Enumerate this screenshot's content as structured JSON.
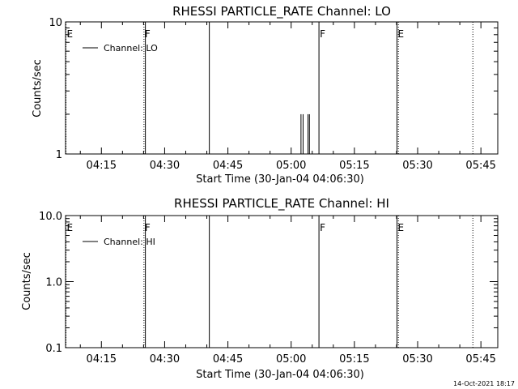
{
  "footer_date": "14-Oct-2021 18:17",
  "chart_data": [
    {
      "type": "line",
      "title": "RHESSI PARTICLE_RATE Channel: LO",
      "xlabel": "Start Time (30-Jan-04 04:06:30)",
      "ylabel": "Counts/sec",
      "y_scale": "log",
      "ylim": [
        1,
        10
      ],
      "y_ticks": [
        {
          "value": 1,
          "label": "1"
        },
        {
          "value": 10,
          "label": "10"
        }
      ],
      "xlim": [
        "04:06:30",
        "05:49:00"
      ],
      "x_ticks": [
        "04:15",
        "04:30",
        "04:45",
        "05:00",
        "05:15",
        "05:30",
        "05:45"
      ],
      "legend": {
        "position": "top-left",
        "label": "Channel: LO"
      },
      "flags": [
        {
          "time": "04:06:30",
          "label": "E",
          "style": "dotted"
        },
        {
          "time": "04:25:00",
          "label": "F",
          "style": "dotted"
        },
        {
          "time": "04:25:20",
          "label": "",
          "style": "solid"
        },
        {
          "time": "04:40:30",
          "label": "",
          "style": "solid"
        },
        {
          "time": "05:06:30",
          "label": "F",
          "style": "solid"
        },
        {
          "time": "05:25:00",
          "label": "E",
          "style": "solid"
        },
        {
          "time": "05:25:20",
          "label": "",
          "style": "dotted"
        },
        {
          "time": "05:43:00",
          "label": "",
          "style": "dotted"
        }
      ],
      "series": [
        {
          "points": [
            {
              "x": "05:02:20",
              "y": 2
            },
            {
              "x": "05:02:50",
              "y": 2
            },
            {
              "x": "05:04:00",
              "y": 2
            },
            {
              "x": "05:04:20",
              "y": 2
            }
          ]
        }
      ]
    },
    {
      "type": "line",
      "title": "RHESSI PARTICLE_RATE Channel: HI",
      "xlabel": "Start Time (30-Jan-04 04:06:30)",
      "ylabel": "Counts/sec",
      "y_scale": "log",
      "ylim": [
        0.1,
        10
      ],
      "y_ticks": [
        {
          "value": 0.1,
          "label": "0.1"
        },
        {
          "value": 1,
          "label": "1.0"
        },
        {
          "value": 10,
          "label": "10.0"
        }
      ],
      "xlim": [
        "04:06:30",
        "05:49:00"
      ],
      "x_ticks": [
        "04:15",
        "04:30",
        "04:45",
        "05:00",
        "05:15",
        "05:30",
        "05:45"
      ],
      "legend": {
        "position": "top-left",
        "label": "Channel: HI"
      },
      "flags": [
        {
          "time": "04:06:30",
          "label": "E",
          "style": "dotted"
        },
        {
          "time": "04:25:00",
          "label": "F",
          "style": "dotted"
        },
        {
          "time": "04:25:20",
          "label": "",
          "style": "solid"
        },
        {
          "time": "04:40:30",
          "label": "",
          "style": "solid"
        },
        {
          "time": "05:06:30",
          "label": "F",
          "style": "solid"
        },
        {
          "time": "05:25:00",
          "label": "E",
          "style": "solid"
        },
        {
          "time": "05:25:20",
          "label": "",
          "style": "dotted"
        },
        {
          "time": "05:43:00",
          "label": "",
          "style": "dotted"
        }
      ],
      "series": []
    }
  ]
}
